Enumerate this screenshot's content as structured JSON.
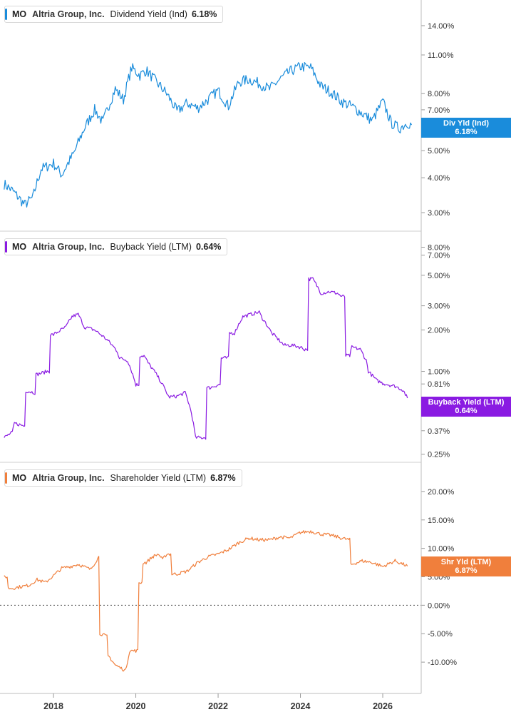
{
  "colors": {
    "div": "#1a8cdb",
    "buy": "#8a1be2",
    "shr": "#f07f3c",
    "grid": "#cfcfcf"
  },
  "panels": [
    {
      "ticker": "MO",
      "company": "Altria Group, Inc.",
      "metric": "Dividend Yield (Ind)",
      "value": "6.18%",
      "tag_label": "Div Yld (Ind)",
      "tag_value": "6.18%"
    },
    {
      "ticker": "MO",
      "company": "Altria Group, Inc.",
      "metric": "Buyback Yield (LTM)",
      "value": "0.64%",
      "tag_label": "Buyback Yield (LTM)",
      "tag_value": "0.64%"
    },
    {
      "ticker": "MO",
      "company": "Altria Group, Inc.",
      "metric": "Shareholder Yield (LTM)",
      "value": "6.87%",
      "tag_label": "Shr Yld (LTM)",
      "tag_value": "6.87%"
    }
  ],
  "chart_data": [
    {
      "type": "line",
      "scale": "log",
      "series": [
        {
          "name": "Dividend Yield (Ind)"
        }
      ],
      "x": [
        2016.8,
        2017.0,
        2017.3,
        2017.5,
        2017.7,
        2018.0,
        2018.2,
        2018.5,
        2018.75,
        2019.0,
        2019.2,
        2019.5,
        2019.7,
        2019.9,
        2020.1,
        2020.25,
        2020.5,
        2020.75,
        2021.0,
        2021.25,
        2021.5,
        2021.75,
        2022.0,
        2022.25,
        2022.5,
        2022.75,
        2023.0,
        2023.25,
        2023.5,
        2023.75,
        2024.0,
        2024.25,
        2024.5,
        2024.75,
        2025.0,
        2025.25,
        2025.5,
        2025.75,
        2026.0,
        2026.2,
        2026.4,
        2026.6,
        2026.7
      ],
      "values": [
        3.8,
        3.6,
        3.2,
        3.4,
        4.3,
        4.5,
        4.1,
        4.9,
        6.0,
        7.0,
        6.3,
        8.3,
        7.6,
        9.9,
        9.3,
        9.7,
        8.8,
        8.0,
        6.9,
        7.4,
        7.1,
        7.6,
        8.2,
        7.2,
        8.8,
        9.0,
        8.7,
        8.3,
        9.0,
        9.6,
        10.0,
        9.9,
        8.5,
        8.1,
        7.5,
        7.2,
        6.8,
        6.4,
        7.5,
        6.3,
        6.0,
        6.3,
        6.18
      ],
      "yticks": [
        3.0,
        4.0,
        5.0,
        7.0,
        8.0,
        11.0,
        14.0
      ],
      "ytick_labels": [
        "3.00%",
        "4.00%",
        "5.00%",
        "7.00%",
        "8.00%",
        "11.00%",
        "14.00%"
      ],
      "ylim": [
        2.7,
        16.5
      ]
    },
    {
      "type": "line",
      "scale": "log",
      "series": [
        {
          "name": "Buyback Yield (LTM)"
        }
      ],
      "x": [
        2016.8,
        2017.0,
        2017.05,
        2017.3,
        2017.35,
        2017.55,
        2017.6,
        2017.85,
        2018.0,
        2018.3,
        2018.45,
        2018.6,
        2018.75,
        2019.0,
        2019.3,
        2019.55,
        2019.6,
        2019.8,
        2020.0,
        2020.2,
        2020.3,
        2020.55,
        2020.8,
        2021.0,
        2021.2,
        2021.35,
        2021.45,
        2021.65,
        2021.8,
        2022.0,
        2022.15,
        2022.4,
        2022.6,
        2022.8,
        2023.0,
        2023.05,
        2023.3,
        2023.6,
        2023.8,
        2024.0,
        2024.1,
        2024.3,
        2024.5,
        2024.7,
        2024.9,
        2025.0,
        2025.2,
        2025.25,
        2025.45,
        2025.6,
        2025.65,
        2025.85,
        2026.0,
        2026.3,
        2026.5,
        2026.55,
        2026.6
      ],
      "values": [
        0.33,
        0.36,
        0.42,
        0.4,
        0.72,
        0.7,
        0.95,
        1.0,
        1.85,
        2.1,
        2.5,
        2.6,
        2.1,
        2.0,
        1.7,
        1.4,
        1.25,
        1.2,
        0.8,
        1.3,
        1.15,
        0.9,
        0.65,
        0.66,
        0.7,
        0.5,
        0.33,
        0.33,
        0.76,
        0.8,
        1.25,
        1.9,
        2.5,
        2.6,
        2.7,
        2.5,
        1.9,
        1.55,
        1.55,
        1.5,
        1.45,
        4.7,
        3.7,
        3.8,
        3.7,
        3.5,
        1.3,
        1.5,
        1.45,
        1.2,
        1.0,
        0.86,
        0.82,
        0.78,
        0.73,
        0.68,
        0.64
      ],
      "yticks": [
        0.25,
        0.37,
        0.81,
        1.0,
        2.0,
        3.0,
        5.0,
        7.0,
        8.0
      ],
      "ytick_labels": [
        "0.25%",
        "0.37%",
        "0.81%",
        "1.00%",
        "2.00%",
        "3.00%",
        "5.00%",
        "7.00%",
        "8.00%"
      ],
      "ylim": [
        0.24,
        9.4
      ]
    },
    {
      "type": "line",
      "series": [
        {
          "name": "Shareholder Yield (LTM)"
        }
      ],
      "x": [
        2016.8,
        2017.0,
        2017.4,
        2017.6,
        2017.8,
        2018.0,
        2018.2,
        2018.4,
        2018.6,
        2018.9,
        2019.1,
        2019.15,
        2019.3,
        2019.35,
        2019.5,
        2019.75,
        2019.85,
        2020.05,
        2020.1,
        2020.25,
        2020.4,
        2020.55,
        2020.65,
        2020.75,
        2021.0,
        2021.25,
        2021.5,
        2021.75,
        2022.0,
        2022.25,
        2022.5,
        2022.75,
        2023.0,
        2023.25,
        2023.5,
        2023.75,
        2024.0,
        2024.25,
        2024.5,
        2024.75,
        2025.0,
        2025.2,
        2025.25,
        2025.5,
        2025.75,
        2026.0,
        2026.3,
        2026.5,
        2026.6
      ],
      "values": [
        5.0,
        3.0,
        3.5,
        4.5,
        4.0,
        5.2,
        6.5,
        6.8,
        7.2,
        6.3,
        8.5,
        -5.0,
        -5.5,
        -9.0,
        -10.5,
        -11.5,
        -8.0,
        -8.0,
        4.0,
        7.5,
        8.5,
        9.0,
        8.0,
        9.0,
        5.5,
        6.0,
        7.5,
        8.5,
        9.0,
        9.8,
        11.0,
        11.8,
        11.5,
        11.5,
        12.0,
        11.8,
        12.8,
        13.0,
        12.5,
        12.3,
        11.8,
        11.5,
        7.2,
        7.8,
        7.5,
        6.8,
        7.8,
        7.2,
        6.87
      ],
      "yticks": [
        -10,
        -5,
        0,
        5,
        10,
        15,
        20
      ],
      "ytick_labels": [
        "-10.00%",
        "-5.00%",
        "0.00%",
        "5.00%",
        "10.00%",
        "15.00%",
        "20.00%"
      ],
      "ylim": [
        -14.5,
        24
      ]
    }
  ],
  "xaxis": {
    "ticks": [
      2018,
      2020,
      2022,
      2024,
      2026
    ],
    "labels": [
      "2018",
      "2020",
      "2022",
      "2024",
      "2026"
    ],
    "xlim": [
      2016.7,
      2026.9
    ]
  }
}
